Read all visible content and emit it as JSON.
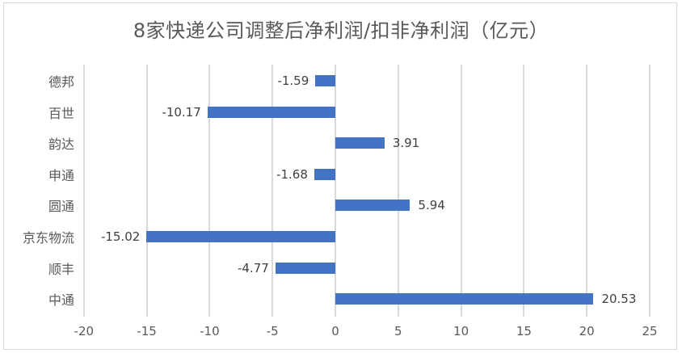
{
  "chart_data": {
    "type": "bar",
    "orientation": "horizontal",
    "title": "8家快递公司调整后净利润/扣非净利润（亿元）",
    "xlabel": "",
    "ylabel": "",
    "xlim": [
      -20,
      25
    ],
    "x_ticks": [
      "-20",
      "-15",
      "-10",
      "-5",
      "0",
      "5",
      "10",
      "15",
      "20",
      "25"
    ],
    "grid": true,
    "legend": null,
    "categories": [
      "德邦",
      "百世",
      "韵达",
      "申通",
      "圆通",
      "京东物流",
      "顺丰",
      "中通"
    ],
    "values": [
      -1.59,
      -10.17,
      3.91,
      -1.68,
      5.94,
      -15.02,
      -4.77,
      20.53
    ],
    "value_labels": [
      "-1.59",
      "-10.17",
      "3.91",
      "-1.68",
      "5.94",
      "-15.02",
      "-4.77",
      "20.53"
    ],
    "bar_color": "#4472c4"
  }
}
